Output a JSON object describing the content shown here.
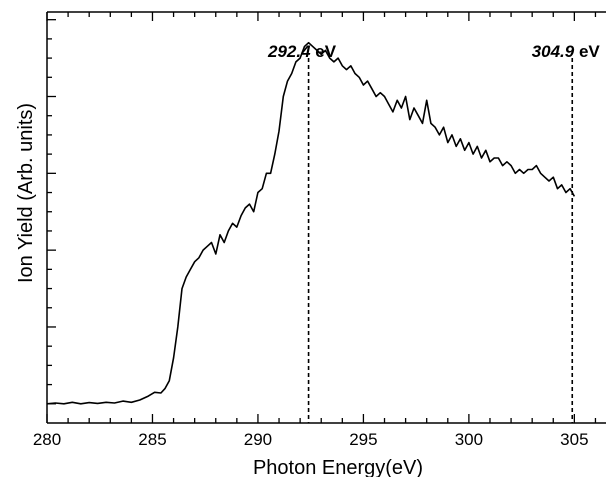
{
  "chart_data": {
    "type": "line",
    "xlabel": "Photon Energy(eV)",
    "ylabel": "Ion Yield (Arb. units)",
    "xlim": [
      280,
      306.5
    ],
    "ylim": [
      -0.05,
      1.02
    ],
    "x_ticks": [
      "280",
      "285",
      "290",
      "295",
      "300",
      "305"
    ],
    "y_ticks_labeled": false,
    "grid": false,
    "series": [
      {
        "color": "#000000",
        "x": [
          280.0,
          280.4,
          280.8,
          281.2,
          281.6,
          282.0,
          282.4,
          282.8,
          283.2,
          283.6,
          284.0,
          284.4,
          284.8,
          285.1,
          285.4,
          285.6,
          285.8,
          286.0,
          286.2,
          286.4,
          286.6,
          286.8,
          287.0,
          287.2,
          287.4,
          287.6,
          287.8,
          288.0,
          288.2,
          288.4,
          288.6,
          288.8,
          289.0,
          289.2,
          289.4,
          289.6,
          289.8,
          290.0,
          290.2,
          290.4,
          290.6,
          290.8,
          291.0,
          291.2,
          291.4,
          291.6,
          291.8,
          292.0,
          292.2,
          292.4,
          292.6,
          292.8,
          293.0,
          293.2,
          293.4,
          293.6,
          293.8,
          294.0,
          294.2,
          294.4,
          294.6,
          294.8,
          295.0,
          295.2,
          295.4,
          295.6,
          295.8,
          296.0,
          296.2,
          296.4,
          296.6,
          296.8,
          297.0,
          297.2,
          297.4,
          297.6,
          297.8,
          298.0,
          298.2,
          298.4,
          298.6,
          298.8,
          299.0,
          299.2,
          299.4,
          299.6,
          299.8,
          300.0,
          300.2,
          300.4,
          300.6,
          300.8,
          301.0,
          301.2,
          301.4,
          301.6,
          301.8,
          302.0,
          302.2,
          302.4,
          302.6,
          302.8,
          303.0,
          303.2,
          303.4,
          303.6,
          303.8,
          304.0,
          304.2,
          304.4,
          304.6,
          304.8,
          305.0
        ],
        "y": [
          0.0,
          0.002,
          0.0,
          0.004,
          0.0,
          0.003,
          0.001,
          0.004,
          0.002,
          0.007,
          0.004,
          0.01,
          0.02,
          0.03,
          0.028,
          0.04,
          0.06,
          0.12,
          0.2,
          0.3,
          0.33,
          0.35,
          0.37,
          0.38,
          0.4,
          0.41,
          0.42,
          0.39,
          0.44,
          0.42,
          0.45,
          0.47,
          0.46,
          0.49,
          0.51,
          0.52,
          0.5,
          0.55,
          0.56,
          0.6,
          0.6,
          0.65,
          0.71,
          0.8,
          0.84,
          0.86,
          0.89,
          0.9,
          0.93,
          0.94,
          0.93,
          0.92,
          0.91,
          0.92,
          0.9,
          0.89,
          0.9,
          0.88,
          0.87,
          0.88,
          0.86,
          0.85,
          0.83,
          0.84,
          0.82,
          0.8,
          0.81,
          0.8,
          0.78,
          0.76,
          0.79,
          0.77,
          0.8,
          0.74,
          0.77,
          0.75,
          0.73,
          0.79,
          0.73,
          0.72,
          0.7,
          0.72,
          0.68,
          0.7,
          0.67,
          0.69,
          0.66,
          0.68,
          0.65,
          0.67,
          0.64,
          0.66,
          0.63,
          0.64,
          0.64,
          0.62,
          0.63,
          0.62,
          0.6,
          0.61,
          0.6,
          0.61,
          0.61,
          0.62,
          0.6,
          0.59,
          0.58,
          0.59,
          0.56,
          0.57,
          0.55,
          0.56,
          0.54
        ]
      }
    ],
    "annotations": [
      {
        "x": 292.4,
        "value": "292.4",
        "unit": "eV"
      },
      {
        "x": 304.9,
        "value": "304.9",
        "unit": "eV"
      }
    ]
  }
}
